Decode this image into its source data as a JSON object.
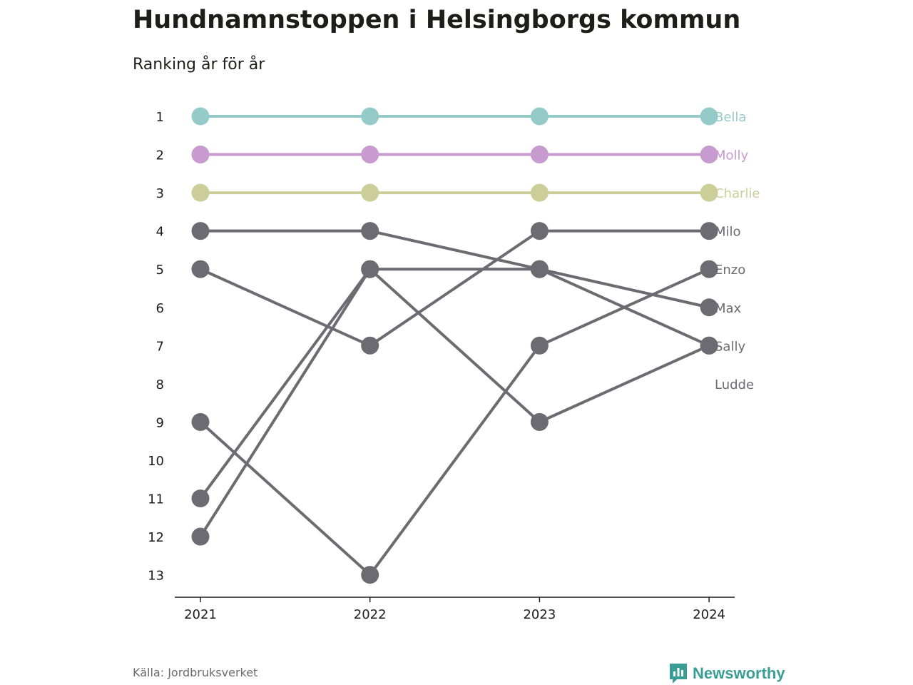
{
  "header": {
    "title": "Hundnamnstoppen i Helsingborgs kommun",
    "subtitle": "Ranking år för år"
  },
  "footer": {
    "source": "Källa: Jordbruksverket",
    "brand": "Newsworthy",
    "brand_icon": "bar-chart-speech-bubble-icon"
  },
  "colors": {
    "Bella": "#94cbc8",
    "Molly": "#c89bd0",
    "Charlie": "#ccce9a",
    "default": "#6c6b72",
    "axis": "#1d1d1b",
    "brand": "#3a9e97"
  },
  "chart_data": {
    "type": "line",
    "title": "Hundnamnstoppen i Helsingborgs kommun",
    "subtitle": "Ranking år för år",
    "x": [
      "2021",
      "2022",
      "2023",
      "2024"
    ],
    "y_ticks": [
      1,
      2,
      3,
      4,
      5,
      6,
      7,
      8,
      9,
      10,
      11,
      12,
      13
    ],
    "ylim": [
      1,
      13
    ],
    "y_inverted": true,
    "grid": false,
    "legend": "direct-labels-right",
    "series": [
      {
        "name": "Bella",
        "values": [
          1,
          1,
          1,
          1
        ]
      },
      {
        "name": "Molly",
        "values": [
          2,
          2,
          2,
          2
        ]
      },
      {
        "name": "Charlie",
        "values": [
          3,
          3,
          3,
          3
        ]
      },
      {
        "name": "Milo",
        "values": [
          5,
          7,
          4,
          4
        ]
      },
      {
        "name": "Enzo",
        "values": [
          9,
          13,
          7,
          5
        ]
      },
      {
        "name": "Max",
        "values": [
          4,
          4,
          5,
          6
        ]
      },
      {
        "name": "Sally",
        "values": [
          12,
          5,
          5,
          7
        ]
      },
      {
        "name": "Ludde",
        "values": [
          11,
          5,
          9,
          7
        ]
      }
    ],
    "end_labels": [
      {
        "name": "Bella",
        "rank": 1
      },
      {
        "name": "Molly",
        "rank": 2
      },
      {
        "name": "Charlie",
        "rank": 3
      },
      {
        "name": "Milo",
        "rank": 4
      },
      {
        "name": "Enzo",
        "rank": 5
      },
      {
        "name": "Max",
        "rank": 6
      },
      {
        "name": "Sally",
        "rank": 7
      },
      {
        "name": "Ludde",
        "rank": 8
      }
    ]
  }
}
